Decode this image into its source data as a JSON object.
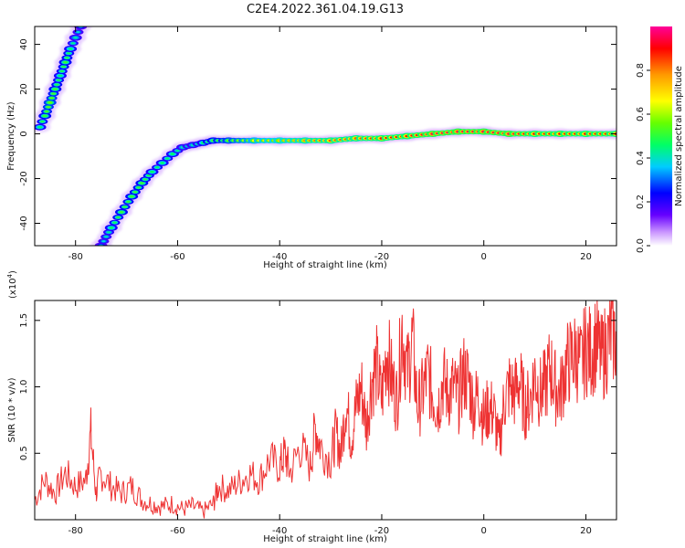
{
  "chart_data": [
    {
      "type": "heatmap",
      "title": "C2E4.2022.361.04.19.G13",
      "xlabel": "Height of straight line (km)",
      "ylabel": "Frequency (Hz)",
      "xlim": [
        -88,
        26
      ],
      "ylim": [
        -50,
        48
      ],
      "xticks": [
        "-80",
        "-60",
        "-40",
        "-20",
        "0",
        "20"
      ],
      "yticks": [
        "-40",
        "-20",
        "0",
        "20",
        "40"
      ],
      "colorbar": {
        "label": "Normalized spectral amplitude",
        "range": [
          0,
          1
        ],
        "ticks": [
          "0.0",
          "0.2",
          "0.4",
          "0.6",
          "0.8"
        ],
        "colors": [
          "#ffffff",
          "#cc99ff",
          "#6600ff",
          "#0000ff",
          "#00ccff",
          "#00ff66",
          "#66ff00",
          "#ffff00",
          "#ff9900",
          "#ff0000",
          "#ff0099"
        ]
      },
      "traces": [
        {
          "name": "",
          "points": [
            [
              -87,
              3
            ],
            [
              -86,
              8
            ],
            [
              -85,
              14
            ],
            [
              -84,
              20
            ],
            [
              -83,
              26
            ],
            [
              -82,
              32
            ],
            [
              -81,
              38
            ],
            [
              -80,
              43
            ],
            [
              -79,
              48
            ]
          ],
          "amplitudes": [
            0.5,
            0.55,
            0.6,
            0.55,
            0.5,
            0.55,
            0.5,
            0.45,
            0.4
          ]
        },
        {
          "name": "",
          "points": [
            [
              -75,
              -50
            ],
            [
              -73,
              -42
            ],
            [
              -71,
              -35
            ],
            [
              -69,
              -28
            ],
            [
              -67,
              -22
            ],
            [
              -65,
              -17
            ],
            [
              -63,
              -13
            ],
            [
              -61,
              -9
            ],
            [
              -59,
              -6
            ],
            [
              -57,
              -5
            ],
            [
              -55,
              -4
            ],
            [
              -53,
              -3
            ],
            [
              -50,
              -3
            ],
            [
              -45,
              -3
            ],
            [
              -40,
              -3
            ],
            [
              -35,
              -3
            ],
            [
              -30,
              -3
            ],
            [
              -25,
              -2
            ],
            [
              -20,
              -2
            ],
            [
              -15,
              -1
            ],
            [
              -10,
              0
            ],
            [
              -5,
              1
            ],
            [
              0,
              1
            ],
            [
              5,
              0
            ],
            [
              10,
              0
            ],
            [
              15,
              0
            ],
            [
              20,
              0
            ],
            [
              26,
              0
            ]
          ],
          "amplitudes": [
            0.4,
            0.5,
            0.55,
            0.55,
            0.55,
            0.5,
            0.5,
            0.5,
            0.45,
            0.45,
            0.5,
            0.55,
            0.6,
            0.7,
            0.75,
            0.8,
            0.85,
            0.85,
            0.9,
            0.9,
            0.95,
            0.95,
            0.95,
            0.95,
            0.9,
            0.9,
            0.9,
            0.9
          ]
        }
      ]
    },
    {
      "type": "line",
      "title": "",
      "xlabel": "Height of straight line (km)",
      "ylabel": "SNR (10 * v/v)",
      "y_multiplier": "(x10",
      "y_multiplier_exp": "4",
      "y_multiplier_close": ")",
      "xlim": [
        -88,
        26
      ],
      "ylim": [
        0,
        1.65
      ],
      "xticks": [
        "-80",
        "-60",
        "-40",
        "-20",
        "0",
        "20"
      ],
      "yticks": [
        "0.5",
        "1.0",
        "1.5"
      ],
      "color": "#ee3333",
      "series": [
        {
          "name": "",
          "x": [
            -88,
            -86,
            -84,
            -82,
            -80,
            -78,
            -77,
            -76,
            -75,
            -73,
            -71,
            -69,
            -67,
            -65,
            -63,
            -61,
            -59,
            -57,
            -55,
            -53,
            -52,
            -50,
            -48,
            -46,
            -44,
            -42,
            -40,
            -39,
            -38,
            -36,
            -34,
            -33,
            -32,
            -30,
            -29,
            -28,
            -27,
            -26,
            -25,
            -24,
            -23,
            -22,
            -21,
            -20,
            -19,
            -18,
            -17,
            -16,
            -15,
            -14,
            -13,
            -12,
            -11,
            -10,
            -9,
            -8,
            -7,
            -6,
            -5,
            -4,
            -3,
            -2,
            -1,
            0,
            1,
            2,
            3,
            4,
            5,
            6,
            7,
            8,
            9,
            10,
            11,
            12,
            13,
            14,
            15,
            16,
            17,
            18,
            19,
            20,
            21,
            22,
            23,
            24,
            25,
            26
          ],
          "y": [
            0.15,
            0.3,
            0.2,
            0.35,
            0.25,
            0.3,
            0.65,
            0.2,
            0.35,
            0.25,
            0.2,
            0.25,
            0.15,
            0.12,
            0.1,
            0.12,
            0.08,
            0.1,
            0.06,
            0.12,
            0.25,
            0.22,
            0.28,
            0.35,
            0.3,
            0.45,
            0.4,
            0.5,
            0.35,
            0.55,
            0.4,
            0.7,
            0.55,
            0.45,
            0.65,
            0.5,
            0.9,
            0.6,
            0.85,
            1.0,
            0.7,
            1.05,
            1.15,
            0.9,
            1.3,
            1.05,
            0.9,
            1.45,
            1.1,
            1.35,
            0.85,
            0.95,
            1.1,
            0.95,
            0.85,
            1.05,
            0.95,
            1.0,
            0.9,
            1.1,
            1.05,
            0.85,
            0.95,
            0.75,
            0.85,
            0.8,
            0.55,
            0.9,
            1.0,
            0.95,
            1.05,
            0.85,
            0.9,
            1.1,
            0.95,
            1.0,
            1.15,
            1.0,
            0.95,
            1.15,
            1.2,
            1.25,
            1.15,
            1.3,
            1.25,
            1.35,
            1.2,
            1.3,
            1.4,
            1.35
          ]
        }
      ]
    }
  ]
}
